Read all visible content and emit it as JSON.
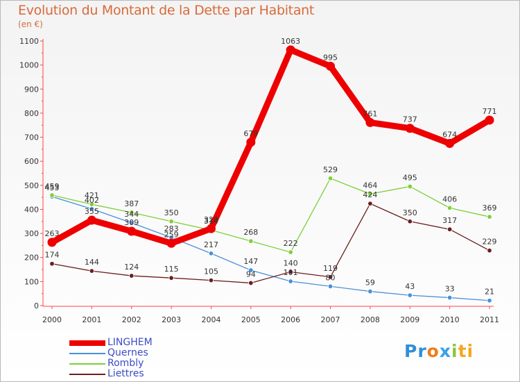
{
  "chart_data": {
    "type": "line",
    "title": "Evolution du Montant de la Dette par Habitant",
    "subtitle": "(en €)",
    "x": [
      "2000",
      "2001",
      "2002",
      "2003",
      "2004",
      "2005",
      "2006",
      "2007",
      "2008",
      "2009",
      "2010",
      "2011"
    ],
    "ylim": [
      0,
      1100
    ],
    "yticks": [
      0,
      100,
      200,
      300,
      400,
      500,
      600,
      700,
      800,
      900,
      1000,
      1100
    ],
    "grid": false,
    "legend_position": "bottom-left",
    "series": [
      {
        "name": "LINGHEM",
        "color": "#ee0000",
        "values": [
          263,
          355,
          309,
          259,
          320,
          679,
          1063,
          995,
          761,
          737,
          674,
          771
        ]
      },
      {
        "name": "Quernes",
        "color": "#4a90d9",
        "values": [
          453,
          402,
          344,
          283,
          217,
          147,
          101,
          80,
          59,
          43,
          33,
          21
        ]
      },
      {
        "name": "Rombly",
        "color": "#7ed038",
        "values": [
          459,
          421,
          387,
          350,
          314,
          268,
          222,
          529,
          464,
          495,
          406,
          369
        ]
      },
      {
        "name": "Liettres",
        "color": "#6b1e1e",
        "values": [
          174,
          144,
          124,
          115,
          105,
          94,
          140,
          119,
          424,
          350,
          317,
          229
        ]
      }
    ]
  },
  "logo": {
    "parts": [
      "Pr",
      "o",
      "x",
      "i",
      "ti"
    ],
    "colors": [
      "#2f8fd8",
      "#f07c1b",
      "#3aa0e8",
      "#8cc63f",
      "#f5a623"
    ]
  }
}
